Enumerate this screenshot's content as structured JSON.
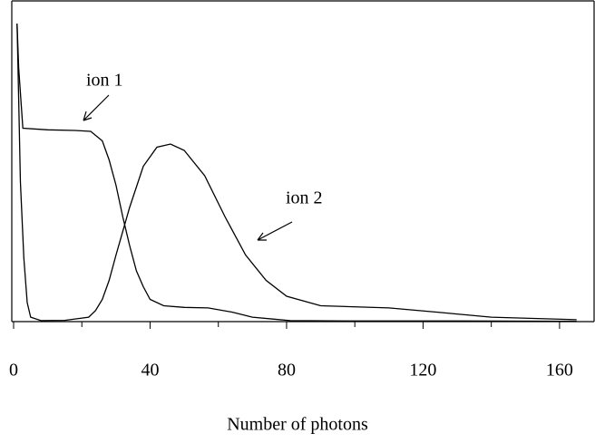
{
  "chart_data": {
    "type": "line",
    "x_label": "Number of photons",
    "xlim": [
      0,
      168
    ],
    "xticks": [
      0,
      40,
      80,
      120,
      160
    ],
    "xminor_ticks": [
      20,
      60,
      100,
      140
    ],
    "ylim": [
      0,
      100
    ],
    "color": "#000000",
    "series": [
      {
        "name": "ion 1",
        "x": [
          1,
          1.5,
          2.7,
          10,
          18,
          22.6,
          26,
          28,
          30,
          32,
          34,
          36,
          38,
          40,
          44,
          50,
          57,
          64,
          70,
          76,
          81,
          100,
          130,
          165
        ],
        "values": [
          94,
          80,
          61,
          60.5,
          60.3,
          60,
          57,
          51,
          43,
          33,
          24,
          16,
          11,
          7,
          5,
          4.5,
          4.3,
          3,
          1.4,
          0.8,
          0.3,
          0.2,
          0.2,
          0.1
        ]
      },
      {
        "name": "ion 2",
        "x": [
          1,
          1.5,
          2,
          3,
          4,
          5,
          8,
          15,
          22,
          24,
          26,
          28,
          30,
          34,
          38,
          42,
          46,
          50,
          56,
          62,
          68,
          74,
          80,
          90,
          110,
          125,
          140,
          165
        ],
        "values": [
          94,
          70,
          44,
          20,
          6,
          1.4,
          0.3,
          0.4,
          1.4,
          3.5,
          7,
          13,
          21,
          36,
          49,
          55,
          56,
          54,
          46,
          33,
          21,
          13,
          8,
          5,
          4.3,
          2.9,
          1.4,
          0.6
        ]
      }
    ]
  }
}
